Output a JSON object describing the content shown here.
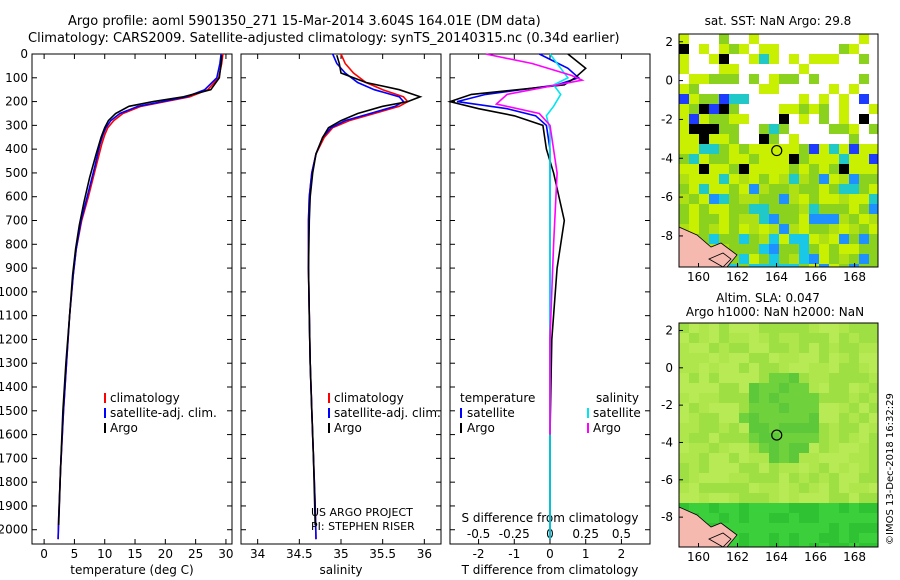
{
  "header": {
    "line1": "Argo profile: aoml 5901350_271 15-Mar-2014 3.604S 164.01E (DM data)",
    "line2": "Climatology: CARS2009. Satellite-adjusted climatology: synTS_20140315.nc (0.34d earlier)"
  },
  "colors": {
    "climatology": "#ff0000",
    "satellite": "#0000ff",
    "argo": "#000000",
    "sat_salinity": "#00e5ee",
    "argo_salinity_diff": "#ff00ff"
  },
  "watermark": "©IMOS 13-Dec-2018 16:32:29",
  "project_credit": [
    "US ARGO PROJECT",
    "PI: STEPHEN RISER"
  ],
  "chart_data": [
    {
      "type": "line",
      "name": "temperature",
      "xlabel": "temperature (deg C)",
      "xlim": [
        -2,
        31
      ],
      "ylim": [
        2060,
        0
      ],
      "y_inverted": true,
      "xticks": [
        0,
        5,
        10,
        15,
        20,
        25,
        30
      ],
      "xtick_labels": [
        "0",
        "5",
        "10",
        "15",
        "20",
        "25",
        "30"
      ],
      "yticks": [
        0,
        100,
        200,
        300,
        400,
        500,
        600,
        700,
        800,
        900,
        1000,
        1100,
        1200,
        1300,
        1400,
        1500,
        1600,
        1700,
        1800,
        1900,
        2000
      ],
      "ytick_labels": [
        "0",
        "100",
        "200",
        "300",
        "400",
        "500",
        "600",
        "700",
        "800",
        "900",
        "1000",
        "1100",
        "1200",
        "1300",
        "1400",
        "1500",
        "1600",
        "1700",
        "1800",
        "1900",
        "2000"
      ],
      "legend": [
        "climatology",
        "satellite-adj. clim.",
        "Argo"
      ],
      "legend_placement": "lower-center",
      "series": [
        {
          "name": "climatology",
          "color": "#ff0000",
          "x": [
            29.5,
            29.3,
            28.8,
            27,
            24,
            20,
            16,
            13,
            11.5,
            10.5,
            10,
            9.5,
            8.5,
            7.3,
            6.2,
            5.3,
            4.8,
            4.2,
            3.7,
            3.2,
            2.7,
            2.4,
            2.3
          ],
          "y": [
            0,
            40,
            100,
            150,
            180,
            200,
            220,
            250,
            280,
            310,
            340,
            380,
            480,
            600,
            700,
            820,
            930,
            1100,
            1300,
            1500,
            1750,
            1950,
            2040
          ]
        },
        {
          "name": "satellite-adj. clim.",
          "color": "#0000ff",
          "x": [
            29.2,
            29,
            28.5,
            26.5,
            23.5,
            19.5,
            15.5,
            12.5,
            11,
            10.2,
            9.7,
            9.2,
            8.3,
            7.1,
            6.1,
            5.3,
            4.8,
            4.2,
            3.7,
            3.2,
            2.7,
            2.4,
            2.3
          ],
          "y": [
            0,
            40,
            100,
            150,
            180,
            200,
            220,
            250,
            280,
            310,
            340,
            380,
            480,
            600,
            700,
            820,
            930,
            1100,
            1300,
            1500,
            1750,
            1950,
            2040
          ]
        },
        {
          "name": "Argo",
          "color": "#000000",
          "x": [
            29.3,
            29.2,
            28.9,
            27.5,
            23,
            18,
            14,
            11.8,
            10.6,
            10,
            9.4,
            8.6,
            7.5,
            6.6,
            5.8,
            5.2,
            4.7,
            4.2,
            3.6,
            3.1,
            2.7,
            2.4
          ],
          "y": [
            5,
            40,
            100,
            150,
            180,
            200,
            220,
            250,
            280,
            310,
            350,
            420,
            520,
            620,
            720,
            820,
            930,
            1100,
            1300,
            1500,
            1750,
            1980
          ]
        }
      ]
    },
    {
      "type": "line",
      "name": "salinity",
      "xlabel": "salinity",
      "xlim": [
        33.8,
        36.2
      ],
      "ylim": [
        2060,
        0
      ],
      "y_inverted": true,
      "xticks": [
        34,
        34.5,
        35,
        35.5,
        36
      ],
      "xtick_labels": [
        "34",
        "34.5",
        "35",
        "35.5",
        "36"
      ],
      "legend": [
        "climatology",
        "satellite-adj. clim.",
        "Argo"
      ],
      "legend_placement": "lower-center",
      "series": [
        {
          "name": "climatology",
          "color": "#ff0000",
          "x": [
            35.0,
            35.05,
            35.15,
            35.3,
            35.5,
            35.75,
            35.8,
            35.7,
            35.4,
            35.1,
            34.9,
            34.8,
            34.7,
            34.65,
            34.62,
            34.61,
            34.61,
            34.62,
            34.63,
            34.65,
            34.67,
            34.69,
            34.7
          ],
          "y": [
            0,
            40,
            80,
            120,
            150,
            180,
            200,
            220,
            250,
            280,
            310,
            350,
            420,
            500,
            600,
            700,
            900,
            1100,
            1300,
            1500,
            1700,
            1900,
            2040
          ]
        },
        {
          "name": "satellite-adj. clim.",
          "color": "#0000ff",
          "x": [
            34.9,
            34.95,
            35.05,
            35.2,
            35.4,
            35.7,
            35.75,
            35.65,
            35.35,
            35.05,
            34.88,
            34.78,
            34.7,
            34.65,
            34.62,
            34.61,
            34.61,
            34.62,
            34.63,
            34.65,
            34.67,
            34.69,
            34.7
          ],
          "y": [
            0,
            40,
            80,
            120,
            150,
            180,
            200,
            220,
            250,
            280,
            310,
            350,
            420,
            500,
            600,
            700,
            900,
            1100,
            1300,
            1500,
            1700,
            1900,
            2040
          ]
        },
        {
          "name": "Argo",
          "color": "#000000",
          "x": [
            34.95,
            34.98,
            35.0,
            35.3,
            35.7,
            35.95,
            35.8,
            35.5,
            35.2,
            35.0,
            34.85,
            34.78,
            34.7,
            34.66,
            34.63,
            34.62,
            34.61,
            34.62,
            34.63,
            34.65,
            34.67,
            34.69
          ],
          "y": [
            5,
            40,
            80,
            120,
            150,
            180,
            200,
            220,
            250,
            280,
            310,
            350,
            420,
            500,
            600,
            700,
            900,
            1100,
            1300,
            1500,
            1700,
            1980
          ]
        }
      ]
    },
    {
      "type": "line",
      "name": "difference",
      "xlabel": "T difference from climatology",
      "top_xlabel": "S difference from climatology",
      "xlim": [
        -2.8,
        2.8
      ],
      "ylim": [
        2060,
        0
      ],
      "y_inverted": true,
      "xticks": [
        -2,
        -1,
        0,
        1,
        2
      ],
      "xtick_labels": [
        "-2",
        "-1",
        "0",
        "1",
        "2"
      ],
      "top_xticks": [
        -0.5,
        -0.25,
        0,
        0.25,
        0.5
      ],
      "top_xtick_labels": [
        "-0.5",
        "-0.25",
        "0",
        "0.25",
        "0.5"
      ],
      "legend_left": {
        "heading": "temperature",
        "entries": [
          "satellite",
          "Argo"
        ]
      },
      "legend_right": {
        "heading": "salinity",
        "entries": [
          "satellite",
          "Argo"
        ]
      },
      "series": [
        {
          "name": "T satellite",
          "color": "#0000ff",
          "x": [
            -0.3,
            0.5,
            0.8,
            0.2,
            -1.8,
            -2.6,
            -1.2,
            -0.4,
            -0.1,
            0,
            0,
            0,
            0,
            0,
            0,
            0
          ],
          "y": [
            0,
            60,
            100,
            130,
            170,
            200,
            230,
            260,
            300,
            400,
            600,
            800,
            1000,
            1400,
            1800,
            2040
          ]
        },
        {
          "name": "T Argo",
          "color": "#000000",
          "x": [
            0.5,
            1.0,
            0.7,
            0.4,
            -2.2,
            -2.8,
            -2.0,
            -1.0,
            -0.2,
            -0.1,
            0.1,
            0.4,
            0.2,
            0.05,
            0,
            0
          ],
          "y": [
            0,
            60,
            100,
            130,
            170,
            200,
            230,
            260,
            300,
            400,
            500,
            700,
            900,
            1200,
            1600,
            2040
          ]
        },
        {
          "name": "S satellite",
          "color": "#00e5ee",
          "x": [
            0,
            0.3,
            0.5,
            0.1,
            0.3,
            0.1,
            -0.1,
            0,
            0,
            0,
            0,
            0
          ],
          "y": [
            0,
            60,
            100,
            130,
            170,
            220,
            260,
            320,
            500,
            900,
            1400,
            2040
          ]
        },
        {
          "name": "S Argo",
          "color": "#ff00ff",
          "x": [
            -1.8,
            -0.5,
            0.6,
            0.9,
            -1.2,
            -1.5,
            -0.3,
            0,
            0.2,
            0.1,
            0,
            0
          ],
          "y": [
            0,
            40,
            90,
            110,
            170,
            210,
            250,
            300,
            500,
            800,
            1200,
            1600
          ]
        }
      ]
    },
    {
      "type": "heatmap",
      "name": "sst-map",
      "title": "sat. SST: NaN Argo: 29.8",
      "xlim": [
        159,
        169.2
      ],
      "ylim": [
        -9.6,
        2.4
      ],
      "xticks": [
        160,
        162,
        164,
        166,
        168
      ],
      "xtick_labels": [
        "160",
        "162",
        "164",
        "166",
        "168"
      ],
      "yticks": [
        2,
        0,
        -2,
        -4,
        -6,
        -8
      ],
      "ytick_labels": [
        "2",
        "0",
        "-2",
        "-4",
        "-6",
        "-8"
      ],
      "profile_location": [
        164.01,
        -3.604
      ]
    },
    {
      "type": "heatmap",
      "name": "sla-map",
      "title_lines": [
        "Altim. SLA: 0.047",
        "Argo h1000: NaN h2000: NaN"
      ],
      "xlim": [
        159,
        169.2
      ],
      "ylim": [
        -9.6,
        2.4
      ],
      "xticks": [
        160,
        162,
        164,
        166,
        168
      ],
      "xtick_labels": [
        "160",
        "162",
        "164",
        "166",
        "168"
      ],
      "yticks": [
        2,
        0,
        -2,
        -4,
        -6,
        -8
      ],
      "ytick_labels": [
        "2",
        "0",
        "-2",
        "-4",
        "-6",
        "-8"
      ],
      "profile_location": [
        164.01,
        -3.604
      ]
    }
  ]
}
